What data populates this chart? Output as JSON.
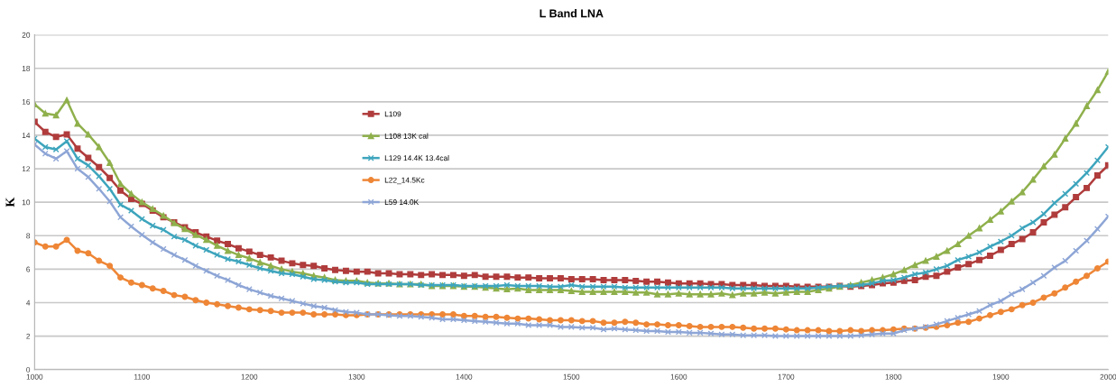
{
  "chart_data": {
    "type": "line",
    "title": "L Band LNA",
    "ylabel": "K",
    "x": [
      1000,
      1010,
      1020,
      1030,
      1040,
      1050,
      1060,
      1070,
      1080,
      1090,
      1100,
      1110,
      1120,
      1130,
      1140,
      1150,
      1160,
      1170,
      1180,
      1190,
      1200,
      1210,
      1220,
      1230,
      1240,
      1250,
      1260,
      1270,
      1280,
      1290,
      1300,
      1310,
      1320,
      1330,
      1340,
      1350,
      1360,
      1370,
      1380,
      1390,
      1400,
      1410,
      1420,
      1430,
      1440,
      1450,
      1460,
      1470,
      1480,
      1490,
      1500,
      1510,
      1520,
      1530,
      1540,
      1550,
      1560,
      1570,
      1580,
      1590,
      1600,
      1610,
      1620,
      1630,
      1640,
      1650,
      1660,
      1670,
      1680,
      1690,
      1700,
      1710,
      1720,
      1730,
      1740,
      1750,
      1760,
      1770,
      1780,
      1790,
      1800,
      1810,
      1820,
      1830,
      1840,
      1850,
      1860,
      1870,
      1880,
      1890,
      1900,
      1910,
      1920,
      1930,
      1940,
      1950,
      1960,
      1970,
      1980,
      1990,
      2000
    ],
    "series": [
      {
        "name": "L109",
        "color": "#b03c3c",
        "marker": "square",
        "values": [
          14.8,
          14.2,
          13.9,
          14.05,
          13.2,
          12.65,
          12.1,
          11.45,
          10.7,
          10.2,
          9.9,
          9.5,
          9.1,
          8.8,
          8.5,
          8.2,
          7.95,
          7.7,
          7.5,
          7.25,
          7.05,
          6.85,
          6.7,
          6.5,
          6.35,
          6.25,
          6.2,
          6.05,
          5.95,
          5.9,
          5.85,
          5.85,
          5.75,
          5.75,
          5.7,
          5.7,
          5.65,
          5.7,
          5.65,
          5.65,
          5.6,
          5.65,
          5.55,
          5.55,
          5.55,
          5.5,
          5.5,
          5.45,
          5.45,
          5.45,
          5.4,
          5.4,
          5.4,
          5.35,
          5.35,
          5.35,
          5.3,
          5.25,
          5.25,
          5.2,
          5.15,
          5.15,
          5.15,
          5.1,
          5.1,
          5.05,
          5.05,
          5.05,
          5.0,
          5.0,
          5.0,
          4.95,
          4.95,
          4.95,
          4.95,
          5.0,
          4.95,
          5.0,
          5.05,
          5.15,
          5.2,
          5.3,
          5.35,
          5.55,
          5.6,
          5.85,
          6.1,
          6.3,
          6.55,
          6.8,
          7.15,
          7.5,
          7.8,
          8.2,
          8.8,
          9.25,
          9.7,
          10.3,
          10.85,
          11.6,
          12.2
        ]
      },
      {
        "name": "L108 13K cal",
        "color": "#8fb04c",
        "marker": "triangle",
        "values": [
          15.85,
          15.3,
          15.2,
          16.1,
          14.7,
          14.05,
          13.3,
          12.35,
          11.1,
          10.5,
          10.0,
          9.6,
          9.2,
          8.75,
          8.4,
          8.05,
          7.75,
          7.4,
          7.1,
          6.85,
          6.65,
          6.4,
          6.2,
          6.0,
          5.85,
          5.75,
          5.6,
          5.5,
          5.35,
          5.3,
          5.3,
          5.2,
          5.15,
          5.15,
          5.1,
          5.1,
          5.1,
          5.0,
          5.0,
          5.0,
          4.95,
          4.95,
          4.9,
          4.85,
          4.8,
          4.85,
          4.75,
          4.75,
          4.75,
          4.75,
          4.7,
          4.65,
          4.65,
          4.65,
          4.65,
          4.65,
          4.6,
          4.6,
          4.5,
          4.5,
          4.55,
          4.5,
          4.5,
          4.5,
          4.55,
          4.45,
          4.55,
          4.55,
          4.6,
          4.55,
          4.6,
          4.65,
          4.65,
          4.75,
          4.85,
          4.95,
          5.05,
          5.2,
          5.35,
          5.5,
          5.7,
          5.95,
          6.25,
          6.5,
          6.75,
          7.1,
          7.5,
          8.0,
          8.45,
          8.95,
          9.45,
          10.05,
          10.6,
          11.35,
          12.15,
          12.85,
          13.8,
          14.7,
          15.75,
          16.7,
          17.8
        ]
      },
      {
        "name": "L129 14.4K 13.4cal",
        "color": "#3ea5bd",
        "marker": "cross",
        "values": [
          13.8,
          13.3,
          13.15,
          13.65,
          12.6,
          12.2,
          11.55,
          10.8,
          9.85,
          9.5,
          9.0,
          8.6,
          8.35,
          7.95,
          7.75,
          7.4,
          7.15,
          6.85,
          6.6,
          6.45,
          6.25,
          6.05,
          5.9,
          5.75,
          5.7,
          5.55,
          5.4,
          5.35,
          5.25,
          5.2,
          5.2,
          5.1,
          5.1,
          5.1,
          5.1,
          5.1,
          5.05,
          5.05,
          5.05,
          5.05,
          5.0,
          5.0,
          5.0,
          5.0,
          5.05,
          5.0,
          5.0,
          5.0,
          4.95,
          4.95,
          5.05,
          4.95,
          4.95,
          4.95,
          4.95,
          4.9,
          4.9,
          4.9,
          4.9,
          4.9,
          4.9,
          4.9,
          4.9,
          4.9,
          4.9,
          4.85,
          4.85,
          4.85,
          4.85,
          4.85,
          4.85,
          4.85,
          4.85,
          4.9,
          4.95,
          5.0,
          5.0,
          5.05,
          5.15,
          5.3,
          5.35,
          5.5,
          5.7,
          5.8,
          6.0,
          6.2,
          6.55,
          6.75,
          7.0,
          7.35,
          7.65,
          8.0,
          8.45,
          8.8,
          9.3,
          9.95,
          10.5,
          11.1,
          11.75,
          12.5,
          13.3
        ]
      },
      {
        "name": "L22_14.5Kc",
        "color": "#ee8636",
        "marker": "circle",
        "values": [
          7.6,
          7.35,
          7.35,
          7.75,
          7.1,
          6.95,
          6.5,
          6.2,
          5.5,
          5.2,
          5.05,
          4.85,
          4.7,
          4.45,
          4.35,
          4.15,
          4.0,
          3.9,
          3.8,
          3.7,
          3.6,
          3.55,
          3.5,
          3.4,
          3.4,
          3.4,
          3.3,
          3.3,
          3.3,
          3.25,
          3.25,
          3.3,
          3.3,
          3.3,
          3.3,
          3.3,
          3.3,
          3.3,
          3.3,
          3.3,
          3.2,
          3.2,
          3.15,
          3.15,
          3.1,
          3.05,
          3.05,
          3.0,
          2.95,
          2.95,
          2.95,
          2.9,
          2.9,
          2.8,
          2.8,
          2.85,
          2.8,
          2.7,
          2.7,
          2.65,
          2.65,
          2.6,
          2.55,
          2.55,
          2.55,
          2.55,
          2.5,
          2.45,
          2.45,
          2.45,
          2.4,
          2.35,
          2.35,
          2.35,
          2.3,
          2.3,
          2.35,
          2.3,
          2.35,
          2.35,
          2.4,
          2.45,
          2.45,
          2.5,
          2.55,
          2.65,
          2.8,
          2.85,
          3.05,
          3.25,
          3.45,
          3.6,
          3.85,
          4.0,
          4.3,
          4.55,
          4.9,
          5.25,
          5.6,
          6.05,
          6.45
        ]
      },
      {
        "name": "L59 14.0K",
        "color": "#8ea6d6",
        "marker": "cross",
        "values": [
          13.45,
          12.9,
          12.6,
          13.05,
          12.0,
          11.5,
          10.8,
          10.05,
          9.1,
          8.55,
          8.05,
          7.6,
          7.2,
          6.85,
          6.55,
          6.2,
          5.9,
          5.6,
          5.35,
          5.05,
          4.8,
          4.6,
          4.4,
          4.25,
          4.1,
          3.95,
          3.8,
          3.7,
          3.55,
          3.45,
          3.4,
          3.3,
          3.3,
          3.25,
          3.2,
          3.2,
          3.15,
          3.1,
          3.0,
          3.0,
          2.95,
          2.9,
          2.85,
          2.8,
          2.75,
          2.75,
          2.65,
          2.65,
          2.65,
          2.55,
          2.55,
          2.5,
          2.5,
          2.4,
          2.45,
          2.4,
          2.35,
          2.3,
          2.3,
          2.25,
          2.25,
          2.2,
          2.2,
          2.15,
          2.1,
          2.1,
          2.05,
          2.05,
          2.05,
          2.0,
          2.0,
          2.0,
          2.0,
          2.0,
          2.0,
          2.0,
          2.0,
          2.05,
          2.1,
          2.15,
          2.15,
          2.35,
          2.45,
          2.55,
          2.7,
          2.9,
          3.1,
          3.3,
          3.5,
          3.85,
          4.1,
          4.5,
          4.8,
          5.2,
          5.6,
          6.1,
          6.5,
          7.1,
          7.7,
          8.4,
          9.15
        ]
      }
    ],
    "xlim": [
      1000,
      2000
    ],
    "xticks": [
      1000,
      1100,
      1200,
      1300,
      1400,
      1500,
      1600,
      1700,
      1800,
      1900,
      2000
    ],
    "ylim": [
      0,
      20
    ],
    "yticks": [
      0,
      2,
      4,
      6,
      8,
      10,
      12,
      14,
      16,
      18,
      20
    ],
    "grid": "y",
    "legend": "center left"
  }
}
